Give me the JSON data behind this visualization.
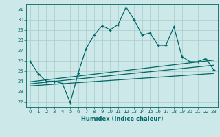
{
  "xlabel": "Humidex (Indice chaleur)",
  "ylabel": "",
  "xlim": [
    -0.5,
    23.5
  ],
  "ylim": [
    21.5,
    31.5
  ],
  "yticks": [
    22,
    23,
    24,
    25,
    26,
    27,
    28,
    29,
    30,
    31
  ],
  "xticks": [
    0,
    1,
    2,
    3,
    4,
    5,
    6,
    7,
    8,
    9,
    10,
    11,
    12,
    13,
    14,
    15,
    16,
    17,
    18,
    19,
    20,
    21,
    22,
    23
  ],
  "main_line_color": "#006666",
  "bg_color": "#cce8e8",
  "grid_color": "#aacccc",
  "main_data_x": [
    0,
    1,
    2,
    3,
    4,
    5,
    6,
    7,
    8,
    9,
    10,
    11,
    12,
    13,
    14,
    15,
    16,
    17,
    18,
    19,
    20,
    21,
    22,
    23
  ],
  "main_data_y": [
    25.9,
    24.7,
    24.0,
    24.0,
    23.8,
    21.9,
    24.8,
    27.2,
    28.5,
    29.4,
    29.0,
    29.5,
    31.2,
    30.0,
    28.5,
    28.7,
    27.5,
    27.5,
    29.3,
    26.4,
    25.9,
    25.9,
    26.2,
    25.1
  ],
  "trend1_x": [
    0,
    23
  ],
  "trend1_y": [
    23.95,
    26.05
  ],
  "trend2_x": [
    0,
    23
  ],
  "trend2_y": [
    23.75,
    25.55
  ],
  "trend3_x": [
    0,
    23
  ],
  "trend3_y": [
    23.55,
    24.75
  ]
}
